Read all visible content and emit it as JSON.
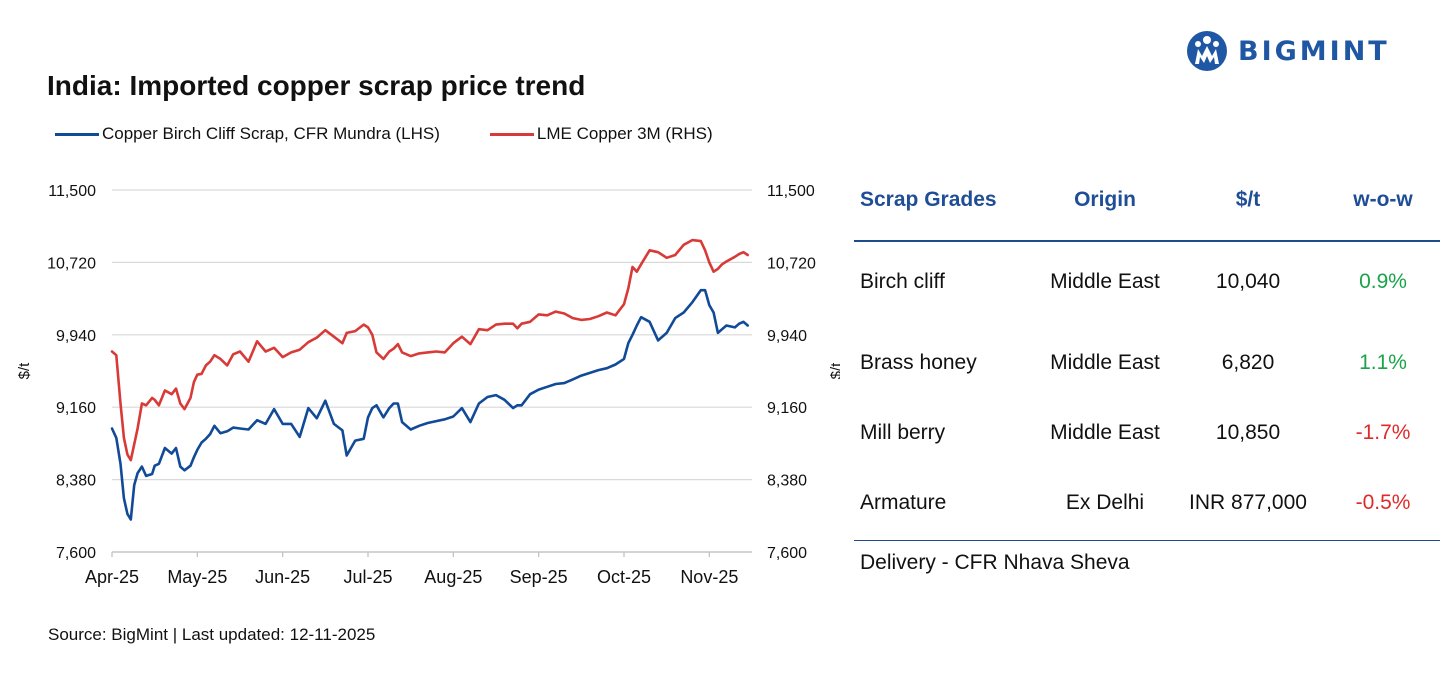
{
  "brand": {
    "name": "BIGMINT",
    "color": "#1f57a4",
    "icon": "bigmint-logo-icon"
  },
  "source_text": "Source: BigMint | Last updated: 12-11-2025",
  "chart_data": {
    "type": "line",
    "title": "India: Imported copper scrap price trend",
    "xlabel": "",
    "ylabel": "$/t",
    "y2label": "$/t",
    "ylim": [
      7600,
      11500
    ],
    "y2lim": [
      7600,
      11500
    ],
    "yticks": [
      "11,500",
      "10,720",
      "9,940",
      "9,160",
      "8,380",
      "7,600"
    ],
    "ytick_values": [
      11500,
      10720,
      9940,
      9160,
      8380,
      7600
    ],
    "categories": [
      "Apr-25",
      "May-25",
      "Jun-25",
      "Jul-25",
      "Aug-25",
      "Sep-25",
      "Oct-25",
      "Nov-25"
    ],
    "x_range": [
      0,
      7.5
    ],
    "grid": true,
    "legend_position": "top",
    "series": [
      {
        "name": "Copper Birch Cliff Scrap, CFR Mundra (LHS)",
        "color": "#114a97",
        "axis": "left",
        "x": [
          0,
          0.05,
          0.1,
          0.14,
          0.18,
          0.22,
          0.26,
          0.3,
          0.35,
          0.4,
          0.47,
          0.5,
          0.55,
          0.62,
          0.7,
          0.75,
          0.8,
          0.85,
          0.92,
          0.96,
          1.0,
          1.05,
          1.1,
          1.15,
          1.2,
          1.27,
          1.35,
          1.42,
          1.5,
          1.6,
          1.7,
          1.8,
          1.9,
          2.0,
          2.1,
          2.2,
          2.3,
          2.4,
          2.5,
          2.6,
          2.7,
          2.75,
          2.85,
          2.95,
          3.0,
          3.05,
          3.1,
          3.18,
          3.25,
          3.3,
          3.35,
          3.4,
          3.5,
          3.6,
          3.7,
          3.8,
          3.9,
          4.0,
          4.1,
          4.2,
          4.3,
          4.4,
          4.5,
          4.6,
          4.7,
          4.75,
          4.8,
          4.9,
          5.0,
          5.1,
          5.2,
          5.3,
          5.4,
          5.5,
          5.6,
          5.7,
          5.8,
          5.9,
          6.0,
          6.05,
          6.1,
          6.15,
          6.2,
          6.3,
          6.4,
          6.5,
          6.6,
          6.7,
          6.8,
          6.9,
          6.95,
          7.0,
          7.05,
          7.1,
          7.15,
          7.2,
          7.3,
          7.35,
          7.4,
          7.45
        ],
        "y": [
          8930,
          8830,
          8550,
          8180,
          8010,
          7950,
          8320,
          8450,
          8520,
          8420,
          8440,
          8530,
          8550,
          8720,
          8660,
          8720,
          8520,
          8480,
          8530,
          8620,
          8700,
          8780,
          8820,
          8870,
          8960,
          8880,
          8900,
          8940,
          8930,
          8920,
          9020,
          8980,
          9140,
          8980,
          8980,
          8840,
          9150,
          9040,
          9230,
          8980,
          8910,
          8640,
          8800,
          8820,
          9050,
          9150,
          9180,
          9050,
          9150,
          9200,
          9200,
          9000,
          8920,
          8960,
          8990,
          9010,
          9030,
          9060,
          9150,
          9000,
          9200,
          9270,
          9290,
          9240,
          9150,
          9180,
          9180,
          9300,
          9350,
          9380,
          9410,
          9420,
          9460,
          9500,
          9530,
          9560,
          9580,
          9620,
          9680,
          9850,
          9940,
          10040,
          10130,
          10080,
          9880,
          9960,
          10120,
          10180,
          10290,
          10420,
          10420,
          10260,
          10180,
          9960,
          10000,
          10040,
          10020,
          10060,
          10080,
          10040
        ]
      },
      {
        "name": "LME Copper 3M (RHS)",
        "color": "#d83a37",
        "axis": "right",
        "x": [
          0,
          0.05,
          0.1,
          0.14,
          0.18,
          0.22,
          0.26,
          0.3,
          0.35,
          0.4,
          0.47,
          0.5,
          0.55,
          0.62,
          0.7,
          0.75,
          0.8,
          0.85,
          0.92,
          0.96,
          1.0,
          1.05,
          1.1,
          1.15,
          1.2,
          1.27,
          1.35,
          1.42,
          1.5,
          1.6,
          1.7,
          1.8,
          1.9,
          2.0,
          2.1,
          2.2,
          2.3,
          2.4,
          2.5,
          2.6,
          2.7,
          2.75,
          2.85,
          2.95,
          3.0,
          3.05,
          3.1,
          3.18,
          3.25,
          3.3,
          3.35,
          3.4,
          3.5,
          3.6,
          3.7,
          3.8,
          3.9,
          4.0,
          4.1,
          4.2,
          4.3,
          4.4,
          4.5,
          4.6,
          4.7,
          4.75,
          4.8,
          4.9,
          5.0,
          5.1,
          5.2,
          5.3,
          5.4,
          5.5,
          5.6,
          5.7,
          5.8,
          5.9,
          6.0,
          6.05,
          6.1,
          6.15,
          6.2,
          6.3,
          6.4,
          6.5,
          6.6,
          6.7,
          6.8,
          6.9,
          6.95,
          7.0,
          7.05,
          7.1,
          7.15,
          7.2,
          7.3,
          7.35,
          7.4,
          7.45
        ],
        "y": [
          9760,
          9720,
          9200,
          8830,
          8650,
          8590,
          8760,
          8930,
          9200,
          9180,
          9260,
          9240,
          9180,
          9340,
          9300,
          9360,
          9200,
          9140,
          9260,
          9430,
          9510,
          9520,
          9610,
          9650,
          9720,
          9680,
          9610,
          9730,
          9760,
          9650,
          9870,
          9760,
          9800,
          9700,
          9750,
          9780,
          9860,
          9910,
          9990,
          9920,
          9850,
          9960,
          9980,
          10050,
          10020,
          9940,
          9750,
          9680,
          9760,
          9790,
          9840,
          9750,
          9710,
          9740,
          9750,
          9760,
          9750,
          9850,
          9920,
          9840,
          10000,
          9990,
          10050,
          10060,
          10060,
          10010,
          10060,
          10080,
          10160,
          10150,
          10190,
          10170,
          10120,
          10100,
          10110,
          10140,
          10180,
          10150,
          10270,
          10440,
          10670,
          10620,
          10700,
          10850,
          10830,
          10770,
          10800,
          10910,
          10960,
          10950,
          10850,
          10720,
          10620,
          10650,
          10700,
          10730,
          10780,
          10810,
          10830,
          10800
        ]
      }
    ]
  },
  "table": {
    "headers": [
      "Scrap Grades",
      "Origin",
      "$/t",
      "w-o-w"
    ],
    "rows": [
      {
        "grade": "Birch cliff",
        "origin": "Middle East",
        "price": "10,040",
        "wow": "0.9%",
        "trend": "up"
      },
      {
        "grade": "Brass honey",
        "origin": "Middle East",
        "price": "6,820",
        "wow": "1.1%",
        "trend": "up"
      },
      {
        "grade": "Mill berry",
        "origin": "Middle East",
        "price": "10,850",
        "wow": "-1.7%",
        "trend": "down"
      },
      {
        "grade": "Armature",
        "origin": "Ex Delhi",
        "price": "INR 877,000",
        "wow": "-0.5%",
        "trend": "down"
      }
    ],
    "footer": "Delivery - CFR Nhava Sheva",
    "header_color": "#1f4e96",
    "positive_color": "#1aa34a",
    "negative_color": "#e02a2a"
  }
}
